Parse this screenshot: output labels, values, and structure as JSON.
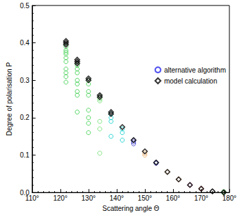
{
  "chart_data": {
    "type": "scatter",
    "xlabel": "Scattering angle Θ",
    "ylabel": "Degree of polarisation P",
    "xlim": [
      110,
      180
    ],
    "xticks": [
      {
        "value": 110,
        "label": "110°"
      },
      {
        "value": 120,
        "label": "120°"
      },
      {
        "value": 130,
        "label": "130°"
      },
      {
        "value": 140,
        "label": "140°"
      },
      {
        "value": 150,
        "label": "150°"
      },
      {
        "value": 160,
        "label": "160°"
      },
      {
        "value": 170,
        "label": "170°"
      },
      {
        "value": 180,
        "label": "180°"
      }
    ],
    "ylim": [
      0,
      0.5
    ],
    "yticks": [
      {
        "value": 0,
        "label": "0.0"
      },
      0.1,
      0.2,
      0.3,
      0.4,
      0.5
    ],
    "grid": false,
    "legend": "upper right",
    "series": [
      {
        "name": "alternative algorithm",
        "color": "#2020ee",
        "marker": "circle",
        "x": [
          122,
          122,
          122,
          122,
          122,
          122,
          122,
          122,
          122,
          122,
          126,
          126,
          126,
          126,
          126,
          126,
          126,
          126,
          130,
          130,
          130,
          130,
          130,
          130,
          130,
          130,
          134,
          134,
          134,
          134,
          134,
          134,
          138,
          138,
          138,
          138,
          142,
          142,
          142,
          146,
          146,
          146,
          150,
          150,
          154,
          154,
          158,
          162,
          166,
          170,
          174,
          178,
          178
        ],
        "values": [
          0.39,
          0.38,
          0.375,
          0.37,
          0.36,
          0.35,
          0.33,
          0.32,
          0.31,
          0.295,
          0.34,
          0.33,
          0.32,
          0.3,
          0.29,
          0.27,
          0.26,
          0.215,
          0.3,
          0.29,
          0.27,
          0.26,
          0.22,
          0.2,
          0.185,
          0.16,
          0.255,
          0.25,
          0.245,
          0.19,
          0.17,
          0.105,
          0.21,
          0.2,
          0.19,
          0.15,
          0.17,
          0.16,
          0.14,
          0.14,
          0.135,
          0.13,
          0.105,
          0.1,
          0.08,
          0.078,
          0.055,
          0.035,
          0.02,
          0.01,
          0.003,
          0.002,
          0.0
        ],
        "colors": [
          "#2ecc40",
          "#2ecc40",
          "#2ecc40",
          "#2ecc40",
          "#2ecc40",
          "#2ecc40",
          "#2ecc40",
          "#2ecc40",
          "#2ecc40",
          "#2ecc40",
          "#2ecc40",
          "#2ecc40",
          "#2ecc40",
          "#2ecc40",
          "#2ecc40",
          "#2ecc40",
          "#2ecc40",
          "#2ecc40",
          "#2ecc40",
          "#2ecc40",
          "#2ecc40",
          "#2ecc40",
          "#2ecc40",
          "#2ecc40",
          "#2ecc40",
          "#2ecc40",
          "#66dd66",
          "#66dd66",
          "#66dd66",
          "#66dd66",
          "#66dd66",
          "#66dd66",
          "#00cccc",
          "#00cccc",
          "#00cccc",
          "#00cccc",
          "#00cccc",
          "#00cccc",
          "#00cccc",
          "#3333cc",
          "#3333cc",
          "#3333cc",
          "#e8a050",
          "#e8a050",
          "#3333cc",
          "#3333cc",
          "#e8a050",
          "#c06020",
          "#e040a0",
          "#dd2020",
          "#222222",
          "#006600",
          "#006600"
        ]
      },
      {
        "name": "model calculation",
        "color": "#000000",
        "marker": "diamond",
        "x": [
          122,
          122,
          122,
          126,
          126,
          126,
          130,
          130,
          134,
          134,
          138,
          138,
          142,
          146,
          150,
          154,
          158,
          162,
          166,
          170,
          174,
          178
        ],
        "values": [
          0.405,
          0.4,
          0.395,
          0.355,
          0.35,
          0.345,
          0.305,
          0.3,
          0.26,
          0.255,
          0.215,
          0.21,
          0.175,
          0.14,
          0.11,
          0.08,
          0.055,
          0.035,
          0.02,
          0.01,
          0.003,
          0.0
        ]
      }
    ]
  }
}
